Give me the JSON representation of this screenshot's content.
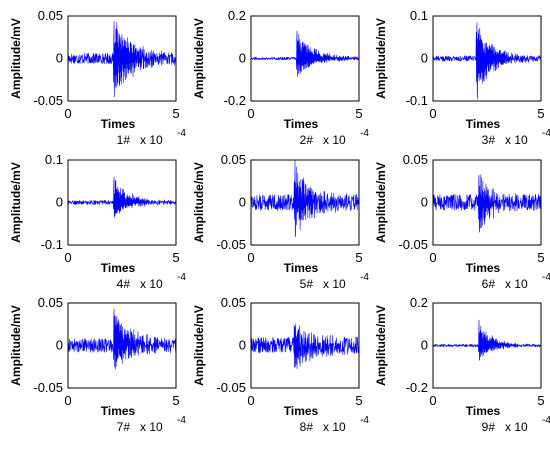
{
  "chart_data": [
    {
      "type": "line",
      "panel": "1#",
      "xlabel": "Times",
      "ylabel": "Amplitude/mV",
      "x_multiplier": "x 10",
      "x_exponent": "-4",
      "xlim": [
        0,
        5
      ],
      "ylim": [
        -0.05,
        0.05
      ],
      "xticks": [
        "0",
        "5"
      ],
      "yticks": [
        "0.05",
        "0",
        "-0.05"
      ],
      "noise": 0.004,
      "burst_start": 2.1,
      "burst_peak": 0.044,
      "burst_min": -0.045,
      "burst_decay": 0.9,
      "series": [
        {
          "color": "#0000ff"
        }
      ]
    },
    {
      "type": "line",
      "panel": "2#",
      "xlabel": "Times",
      "ylabel": "Amplitude/mV",
      "x_multiplier": "x 10",
      "x_exponent": "-4",
      "xlim": [
        0,
        5
      ],
      "ylim": [
        -0.2,
        0.2
      ],
      "xticks": [
        "0",
        "5"
      ],
      "yticks": [
        "0.2",
        "0",
        "-0.2"
      ],
      "noise": 0.004,
      "burst_start": 2.1,
      "burst_peak": 0.13,
      "burst_min": -0.085,
      "burst_decay": 0.8,
      "series": [
        {
          "color": "#0000ff"
        }
      ]
    },
    {
      "type": "line",
      "panel": "3#",
      "xlabel": "Times",
      "ylabel": "Amplitude/mV",
      "x_multiplier": "x 10",
      "x_exponent": "-4",
      "xlim": [
        0,
        5
      ],
      "ylim": [
        -0.1,
        0.1
      ],
      "xticks": [
        "0",
        "5"
      ],
      "yticks": [
        "0.1",
        "0",
        "-0.1"
      ],
      "noise": 0.004,
      "burst_start": 2.0,
      "burst_peak": 0.085,
      "burst_min": -0.095,
      "burst_decay": 0.7,
      "series": [
        {
          "color": "#0000ff"
        }
      ]
    },
    {
      "type": "line",
      "panel": "4#",
      "xlabel": "Times",
      "ylabel": "Amplitude/mV",
      "x_multiplier": "x 10",
      "x_exponent": "-4",
      "xlim": [
        0,
        5
      ],
      "ylim": [
        -0.1,
        0.1
      ],
      "xticks": [
        "0",
        "5"
      ],
      "yticks": [
        "0.1",
        "0",
        "-0.1"
      ],
      "noise": 0.003,
      "burst_start": 2.1,
      "burst_peak": 0.06,
      "burst_min": -0.035,
      "burst_decay": 0.7,
      "series": [
        {
          "color": "#0000ff"
        }
      ]
    },
    {
      "type": "line",
      "panel": "5#",
      "xlabel": "Times",
      "ylabel": "Amplitude/mV",
      "x_multiplier": "x 10",
      "x_exponent": "-4",
      "xlim": [
        0,
        5
      ],
      "ylim": [
        -0.05,
        0.05
      ],
      "xticks": [
        "0",
        "5"
      ],
      "yticks": [
        "0.05",
        "0",
        "-0.05"
      ],
      "noise": 0.006,
      "burst_start": 2.0,
      "burst_peak": 0.05,
      "burst_min": -0.04,
      "burst_decay": 0.7,
      "series": [
        {
          "color": "#0000ff"
        }
      ]
    },
    {
      "type": "line",
      "panel": "6#",
      "xlabel": "Times",
      "ylabel": "Amplitude/mV",
      "x_multiplier": "x 10",
      "x_exponent": "-4",
      "xlim": [
        0,
        5
      ],
      "ylim": [
        -0.05,
        0.05
      ],
      "xticks": [
        "0",
        "5"
      ],
      "yticks": [
        "0.05",
        "0",
        "-0.05"
      ],
      "noise": 0.006,
      "burst_start": 2.1,
      "burst_peak": 0.032,
      "burst_min": -0.035,
      "burst_decay": 0.6,
      "series": [
        {
          "color": "#0000ff"
        }
      ]
    },
    {
      "type": "line",
      "panel": "7#",
      "xlabel": "Times",
      "ylabel": "Amplitude/mV",
      "x_multiplier": "x 10",
      "x_exponent": "-4",
      "xlim": [
        0,
        5
      ],
      "ylim": [
        -0.05,
        0.05
      ],
      "xticks": [
        "0",
        "5"
      ],
      "yticks": [
        "0.05",
        "0",
        "-0.05"
      ],
      "noise": 0.005,
      "burst_start": 2.1,
      "burst_peak": 0.043,
      "burst_min": -0.025,
      "burst_decay": 0.8,
      "series": [
        {
          "color": "#0000ff"
        }
      ]
    },
    {
      "type": "line",
      "panel": "8#",
      "xlabel": "Times",
      "ylabel": "Amplitude/mV",
      "x_multiplier": "x 10",
      "x_exponent": "-4",
      "xlim": [
        0,
        5
      ],
      "ylim": [
        -0.05,
        0.05
      ],
      "xticks": [
        "0",
        "5"
      ],
      "yticks": [
        "0.05",
        "0",
        "-0.05"
      ],
      "noise": 0.006,
      "burst_start": 2.0,
      "burst_peak": 0.022,
      "burst_min": -0.025,
      "burst_decay": 0.9,
      "series": [
        {
          "color": "#0000ff"
        }
      ]
    },
    {
      "type": "line",
      "panel": "9#",
      "xlabel": "Times",
      "ylabel": "Amplitude/mV",
      "x_multiplier": "x 10",
      "x_exponent": "-4",
      "xlim": [
        0,
        5
      ],
      "ylim": [
        -0.2,
        0.2
      ],
      "xticks": [
        "0",
        "5"
      ],
      "yticks": [
        "0.2",
        "0",
        "-0.2"
      ],
      "noise": 0.004,
      "burst_start": 2.1,
      "burst_peak": 0.12,
      "burst_min": -0.07,
      "burst_decay": 0.6,
      "series": [
        {
          "color": "#0000ff"
        }
      ]
    }
  ]
}
